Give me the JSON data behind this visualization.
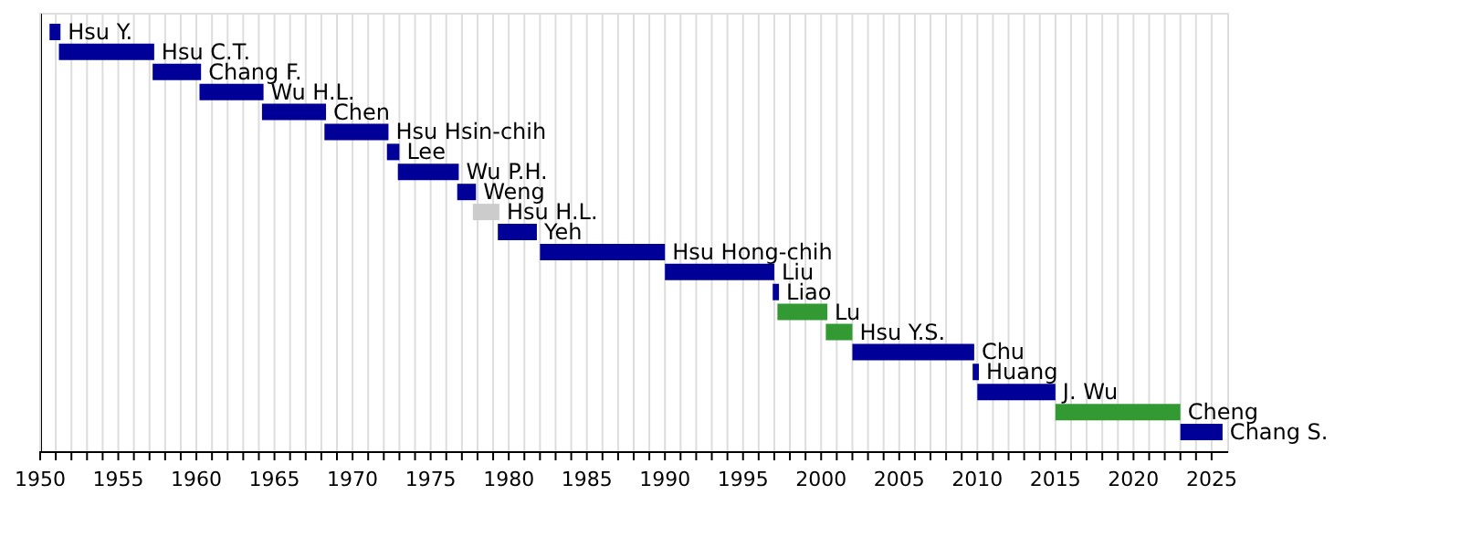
{
  "chart_data": {
    "type": "bar",
    "orientation": "horizontal",
    "categories": [
      "Hsu Y.",
      "Hsu C.T.",
      "Chang F.",
      "Wu H.L.",
      "Chen",
      "Hsu Hsin-chih",
      "Lee",
      "Wu P.H.",
      "Weng",
      "Hsu H.L.",
      "Yeh",
      "Hsu Hong-chih",
      "Liu",
      "Liao",
      "Lu",
      "Hsu Y.S.",
      "Chu",
      "Huang",
      "J. Wu",
      "Cheng",
      "Chang S."
    ],
    "base": [
      1950.6,
      1951.2,
      1957.2,
      1960.2,
      1964.2,
      1968.2,
      1972.2,
      1972.9,
      1976.7,
      1977.7,
      1979.3,
      1982,
      1990,
      1996.9,
      1997.2,
      2000.3,
      2002,
      2009.7,
      2010,
      2015,
      2023
    ],
    "values": [
      0.7,
      6.1,
      3.1,
      4.1,
      4.1,
      4.1,
      0.8,
      3.9,
      1.2,
      1.7,
      2.5,
      8,
      7,
      0.4,
      3.2,
      1.7,
      7.8,
      0.4,
      5,
      8,
      2.7
    ],
    "colors": [
      "#000099",
      "#000099",
      "#000099",
      "#000099",
      "#000099",
      "#000099",
      "#000099",
      "#000099",
      "#000099",
      "#cccccc",
      "#000099",
      "#000099",
      "#000099",
      "#000099",
      "#339933",
      "#339933",
      "#000099",
      "#000099",
      "#000099",
      "#339933",
      "#000099"
    ],
    "xlim": [
      1950,
      2026
    ],
    "xticks": [
      1950,
      {
        "value": 1951,
        "label": null
      },
      {
        "value": 1952,
        "label": null
      },
      {
        "value": 1953,
        "label": null
      },
      {
        "value": 1954,
        "label": null
      },
      1955,
      {
        "value": 1956,
        "label": null
      },
      {
        "value": 1957,
        "label": null
      },
      {
        "value": 1958,
        "label": null
      },
      {
        "value": 1959,
        "label": null
      },
      1960,
      {
        "value": 1961,
        "label": null
      },
      {
        "value": 1962,
        "label": null
      },
      {
        "value": 1963,
        "label": null
      },
      {
        "value": 1964,
        "label": null
      },
      1965,
      {
        "value": 1966,
        "label": null
      },
      {
        "value": 1967,
        "label": null
      },
      {
        "value": 1968,
        "label": null
      },
      {
        "value": 1969,
        "label": null
      },
      1970,
      {
        "value": 1971,
        "label": null
      },
      {
        "value": 1972,
        "label": null
      },
      {
        "value": 1973,
        "label": null
      },
      {
        "value": 1974,
        "label": null
      },
      1975,
      {
        "value": 1976,
        "label": null
      },
      {
        "value": 1977,
        "label": null
      },
      {
        "value": 1978,
        "label": null
      },
      {
        "value": 1979,
        "label": null
      },
      1980,
      {
        "value": 1981,
        "label": null
      },
      {
        "value": 1982,
        "label": null
      },
      {
        "value": 1983,
        "label": null
      },
      {
        "value": 1984,
        "label": null
      },
      1985,
      {
        "value": 1986,
        "label": null
      },
      {
        "value": 1987,
        "label": null
      },
      {
        "value": 1988,
        "label": null
      },
      {
        "value": 1989,
        "label": null
      },
      1990,
      {
        "value": 1991,
        "label": null
      },
      {
        "value": 1992,
        "label": null
      },
      {
        "value": 1993,
        "label": null
      },
      {
        "value": 1994,
        "label": null
      },
      1995,
      {
        "value": 1996,
        "label": null
      },
      {
        "value": 1997,
        "label": null
      },
      {
        "value": 1998,
        "label": null
      },
      {
        "value": 1999,
        "label": null
      },
      2000,
      {
        "value": 2001,
        "label": null
      },
      {
        "value": 2002,
        "label": null
      },
      {
        "value": 2003,
        "label": null
      },
      {
        "value": 2004,
        "label": null
      },
      2005,
      {
        "value": 2006,
        "label": null
      },
      {
        "value": 2007,
        "label": null
      },
      {
        "value": 2008,
        "label": null
      },
      {
        "value": 2009,
        "label": null
      },
      2010,
      {
        "value": 2011,
        "label": null
      },
      {
        "value": 2012,
        "label": null
      },
      {
        "value": 2013,
        "label": null
      },
      {
        "value": 2014,
        "label": null
      },
      2015,
      {
        "value": 2016,
        "label": null
      },
      {
        "value": 2017,
        "label": null
      },
      {
        "value": 2018,
        "label": null
      },
      {
        "value": 2019,
        "label": null
      },
      2020,
      {
        "value": 2021,
        "label": null
      },
      {
        "value": 2022,
        "label": null
      },
      {
        "value": 2023,
        "label": null
      },
      {
        "value": 2024,
        "label": null
      },
      2025
    ],
    "grid": "x",
    "tick_labels": "x"
  }
}
